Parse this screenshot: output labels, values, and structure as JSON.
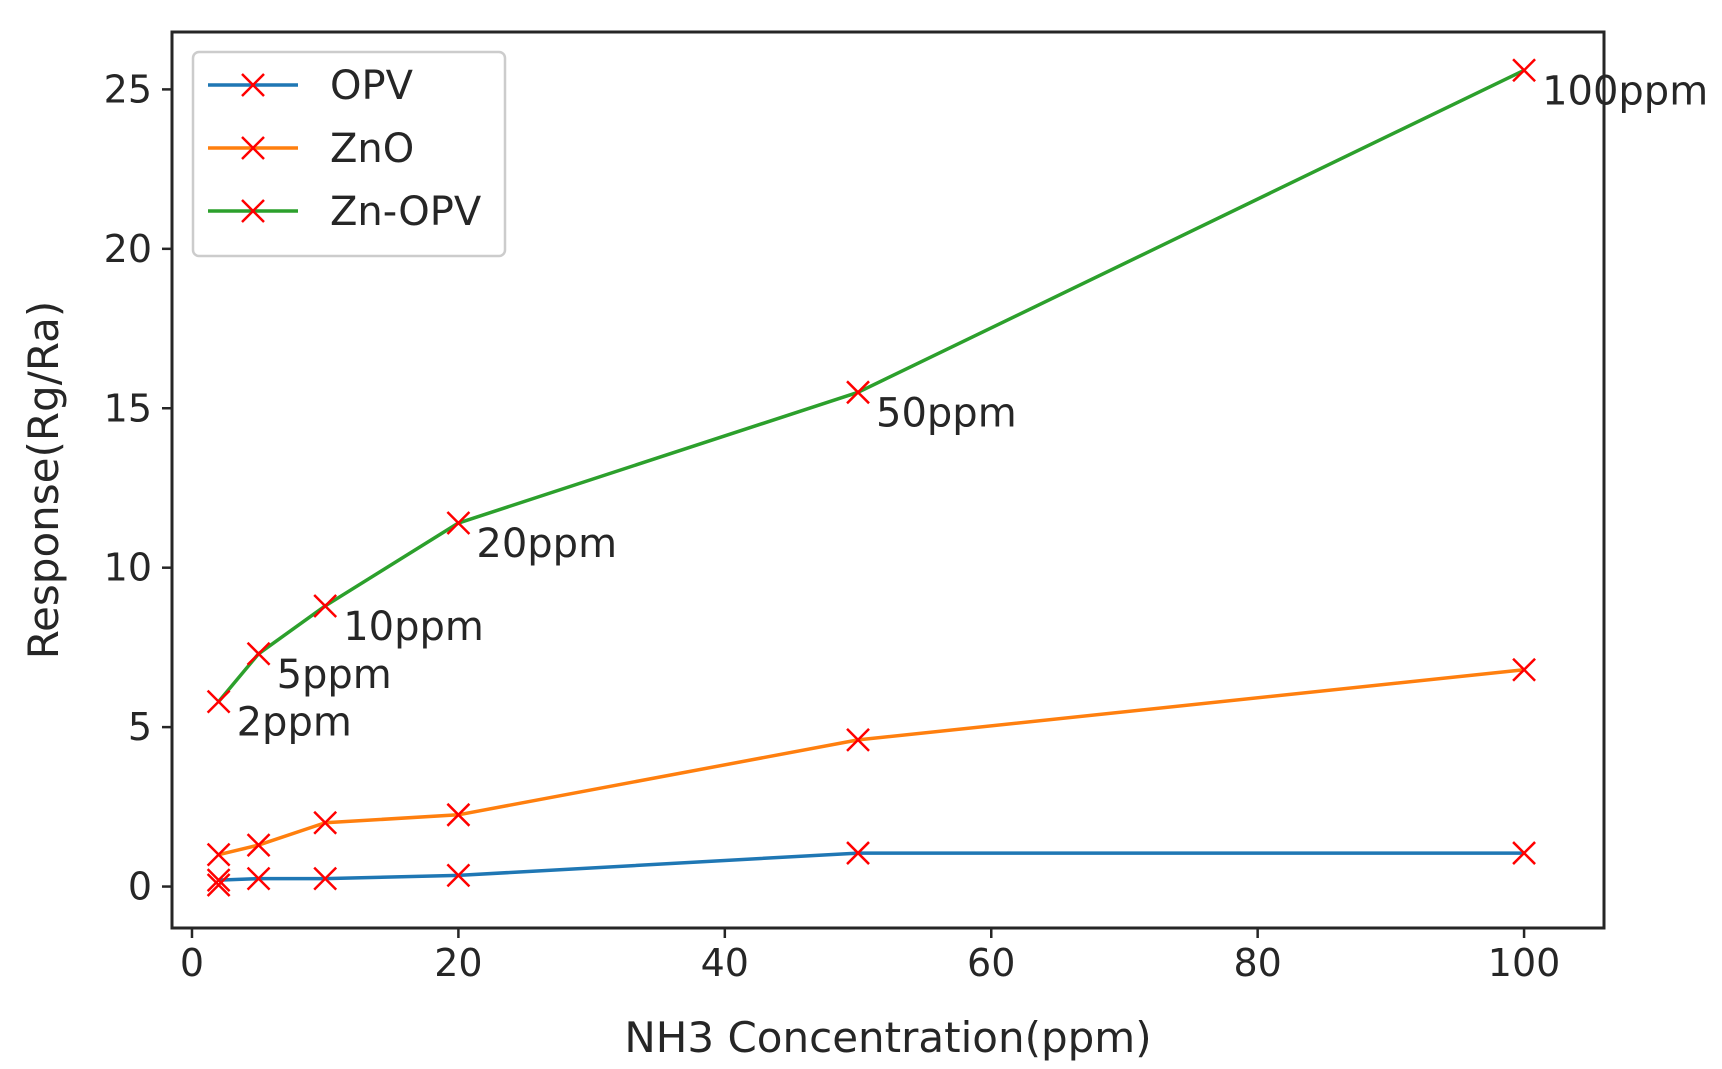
{
  "chart_data": {
    "type": "line",
    "title": "",
    "xlabel": "NH3 Concentration(ppm)",
    "ylabel": "Response(Rg/Ra)",
    "x": [
      2,
      5,
      10,
      20,
      50,
      100
    ],
    "xlim": [
      -1.5,
      106
    ],
    "ylim": [
      -1.3,
      26.8
    ],
    "xticks": [
      0,
      20,
      40,
      60,
      80,
      100
    ],
    "xtick_labels": [
      "0",
      "20",
      "40",
      "60",
      "80",
      "100"
    ],
    "yticks": [
      0,
      5,
      10,
      15,
      20,
      25
    ],
    "ytick_labels": [
      "0",
      "5",
      "10",
      "15",
      "20",
      "25"
    ],
    "grid": false,
    "legend_position": "top-left",
    "marker": "x",
    "marker_color": "#ff0000",
    "series": [
      {
        "name": "OPV",
        "color": "#1f77b4",
        "values": [
          0.2,
          0.25,
          0.25,
          0.35,
          1.05,
          1.05
        ]
      },
      {
        "name": "ZnO",
        "color": "#ff7f0e",
        "values": [
          1.0,
          1.3,
          2.0,
          2.25,
          4.6,
          6.8
        ]
      },
      {
        "name": "Zn-OPV",
        "color": "#2ca02c",
        "values": [
          5.8,
          7.3,
          8.8,
          11.4,
          15.5,
          25.6
        ]
      }
    ],
    "annotations": [
      {
        "text": "2ppm",
        "x": 2,
        "y": 5.8
      },
      {
        "text": "5ppm",
        "x": 5,
        "y": 7.3
      },
      {
        "text": "10ppm",
        "x": 10,
        "y": 8.8
      },
      {
        "text": "20ppm",
        "x": 20,
        "y": 11.4
      },
      {
        "text": "50ppm",
        "x": 50,
        "y": 15.5
      },
      {
        "text": "100ppm",
        "x": 100,
        "y": 25.6
      }
    ],
    "extra_markers": [
      {
        "x": 2,
        "y": 0.05
      }
    ]
  }
}
